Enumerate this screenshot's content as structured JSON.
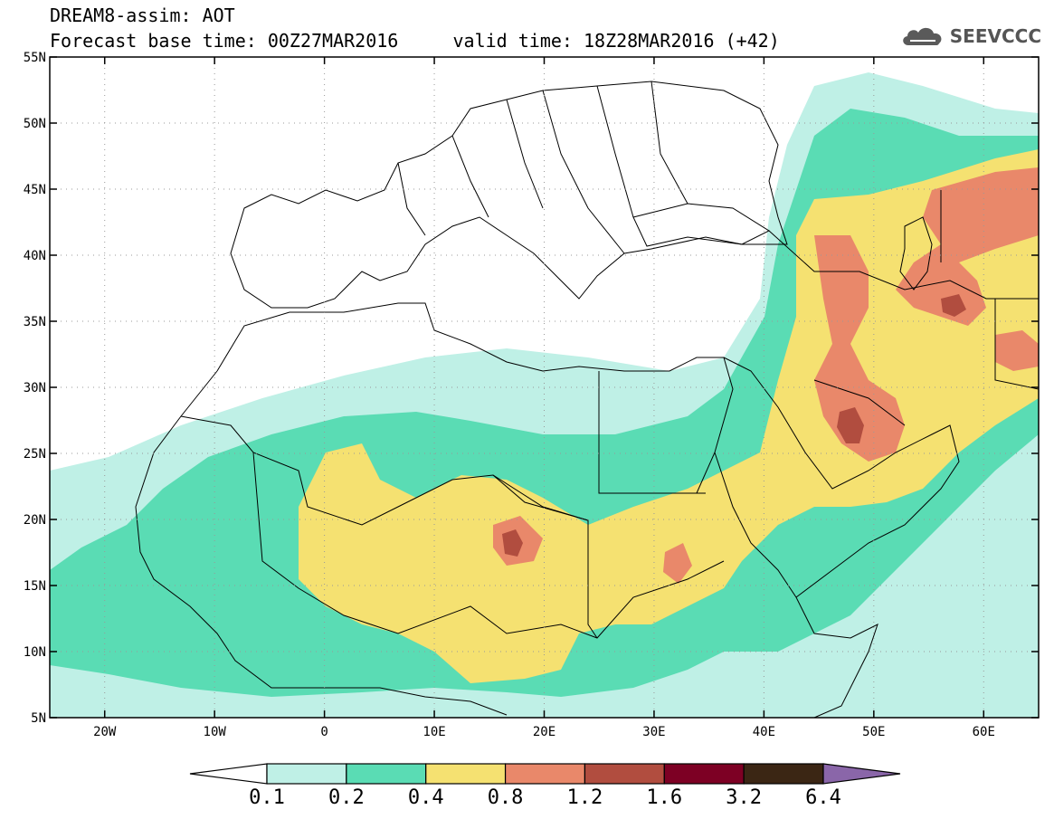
{
  "header": {
    "title": "DREAM8-assim: AOT",
    "subtitle": "Forecast base time: 00Z27MAR2016     valid time: 18Z28MAR2016 (+42)"
  },
  "logo": {
    "text": "SEEVCCC",
    "icon": "cloud-icon"
  },
  "map": {
    "lon_range": [
      -25,
      65
    ],
    "lat_range": [
      5,
      55
    ],
    "lon_ticks": [
      {
        "value": -20,
        "label": "20W"
      },
      {
        "value": -10,
        "label": "10W"
      },
      {
        "value": 0,
        "label": "0"
      },
      {
        "value": 10,
        "label": "10E"
      },
      {
        "value": 20,
        "label": "20E"
      },
      {
        "value": 30,
        "label": "30E"
      },
      {
        "value": 40,
        "label": "40E"
      },
      {
        "value": 50,
        "label": "50E"
      },
      {
        "value": 60,
        "label": "60E"
      }
    ],
    "lat_ticks": [
      {
        "value": 55,
        "label": "55N"
      },
      {
        "value": 50,
        "label": "50N"
      },
      {
        "value": 45,
        "label": "45N"
      },
      {
        "value": 40,
        "label": "40N"
      },
      {
        "value": 35,
        "label": "35N"
      },
      {
        "value": 30,
        "label": "30N"
      },
      {
        "value": 25,
        "label": "25N"
      },
      {
        "value": 20,
        "label": "20N"
      },
      {
        "value": 15,
        "label": "15N"
      },
      {
        "value": 10,
        "label": "10N"
      },
      {
        "value": 5,
        "label": "5N"
      }
    ],
    "grid": true
  },
  "colorbar": {
    "levels": [
      "0.1",
      "0.2",
      "0.4",
      "0.8",
      "1.2",
      "1.6",
      "3.2",
      "6.4"
    ],
    "colors": [
      "#ffffff",
      "#bff0e6",
      "#5adcb4",
      "#f5e171",
      "#e9886a",
      "#b14d3f",
      "#7d0024",
      "#3b2614",
      "#8a66a9"
    ]
  }
}
